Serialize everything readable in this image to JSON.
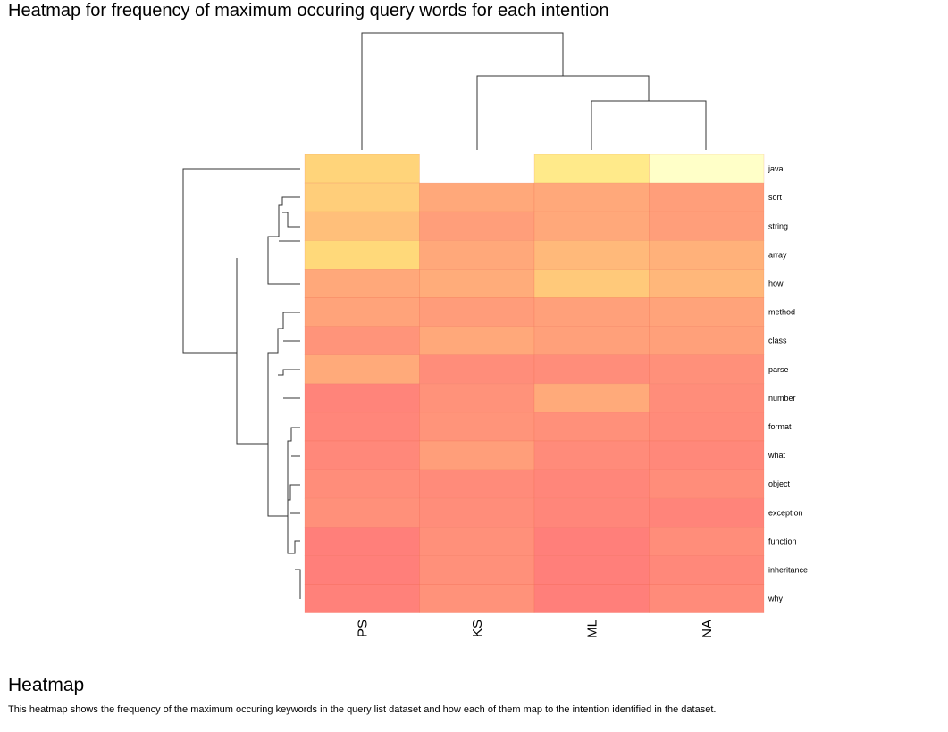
{
  "page": {
    "title": "Heatmap for frequency of maximum occuring query words for each intention",
    "section_heading": "Heatmap",
    "description": "This heatmap shows the frequency of the maximum occuring keywords in the query list dataset and how each of them map to the intention identified in the dataset."
  },
  "chart_data": {
    "type": "heatmap",
    "title": "Heatmap for frequency of maximum occuring query words for each intention",
    "columns": [
      "PS",
      "KS",
      "ML",
      "NA"
    ],
    "rows": [
      "java",
      "sort",
      "string",
      "array",
      "how",
      "method",
      "class",
      "parse",
      "number",
      "format",
      "what",
      "object",
      "exception",
      "function",
      "inheritance",
      "why"
    ],
    "value_scale": "relative frequency (0 = lowest, red; 1 = highest, pale yellow); blank = not present",
    "values": [
      [
        0.72,
        null,
        0.88,
        1.0
      ],
      [
        0.68,
        0.38,
        0.38,
        0.3
      ],
      [
        0.56,
        0.3,
        0.38,
        0.3
      ],
      [
        0.76,
        0.38,
        0.52,
        0.46
      ],
      [
        0.38,
        0.42,
        0.64,
        0.5
      ],
      [
        0.34,
        0.28,
        0.32,
        0.34
      ],
      [
        0.22,
        0.38,
        0.32,
        0.32
      ],
      [
        0.4,
        0.16,
        0.16,
        0.18
      ],
      [
        0.08,
        0.2,
        0.4,
        0.16
      ],
      [
        0.1,
        0.22,
        0.18,
        0.14
      ],
      [
        0.12,
        0.3,
        0.14,
        0.12
      ],
      [
        0.16,
        0.14,
        0.1,
        0.16
      ],
      [
        0.18,
        0.16,
        0.1,
        0.08
      ],
      [
        0.04,
        0.18,
        0.04,
        0.16
      ],
      [
        0.04,
        0.18,
        0.04,
        0.12
      ],
      [
        0.06,
        0.2,
        0.04,
        0.14
      ]
    ],
    "colors": {
      "low": "#ff7a7a",
      "mid": "#ffb07a",
      "high": "#ffe57a",
      "top": "#ffffc8"
    },
    "column_dendrogram": "PS | (KS | (ML, NA))",
    "row_dendrogram": "java | ((sort, string, array, how) | (method, class, parse, number | format, what, object, exception, function, inheritance, why))"
  }
}
